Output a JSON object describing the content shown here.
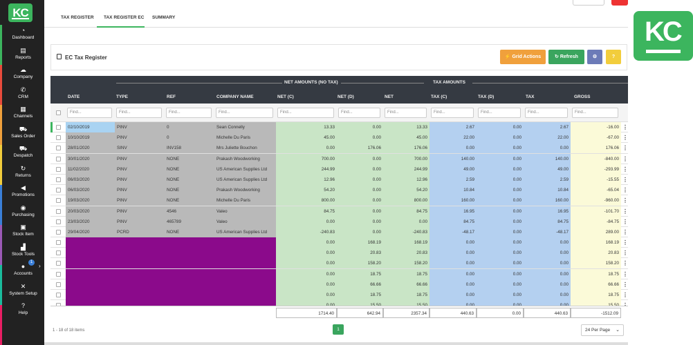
{
  "sidebar": {
    "logo": "KC",
    "items": [
      {
        "label": "Dashboard",
        "icon": "speedometer-icon",
        "glyph": "◔"
      },
      {
        "label": "Reports",
        "icon": "document-icon",
        "glyph": "▤"
      },
      {
        "label": "Company",
        "icon": "cloud-icon",
        "glyph": "☁"
      },
      {
        "label": "CRM",
        "icon": "phone-icon",
        "glyph": "✆"
      },
      {
        "label": "Channels",
        "icon": "channels-icon",
        "glyph": "▦"
      },
      {
        "label": "Sales Order",
        "icon": "cart-icon",
        "glyph": "⛟"
      },
      {
        "label": "Despatch",
        "icon": "truck-icon",
        "glyph": "⛟"
      },
      {
        "label": "Returns",
        "icon": "returns-icon",
        "glyph": "↻"
      },
      {
        "label": "Promotions",
        "icon": "megaphone-icon",
        "glyph": "◀"
      },
      {
        "label": "Purchasing",
        "icon": "coins-icon",
        "glyph": "◉"
      },
      {
        "label": "Stock Item",
        "icon": "box-icon",
        "glyph": "▣"
      },
      {
        "label": "Stock Tools",
        "icon": "chart-icon",
        "glyph": "▟"
      },
      {
        "label": "Accounts",
        "icon": "user-icon",
        "glyph": "●"
      },
      {
        "label": "System Setup",
        "icon": "tools-icon",
        "glyph": "✕"
      },
      {
        "label": "Help",
        "icon": "help-icon",
        "glyph": "?"
      }
    ],
    "accounts_badge": "1",
    "stripe_colors": [
      "#3cb55e",
      "#e94b3c",
      "#f0a03c",
      "#f2cd3c",
      "#3a7fd8",
      "#9b59b6",
      "#1abc9c",
      "#e91e63"
    ]
  },
  "tabs": [
    {
      "label": "TAX REGISTER",
      "active": false
    },
    {
      "label": "TAX REGISTER EC",
      "active": true
    },
    {
      "label": "SUMMARY",
      "active": false
    }
  ],
  "panel": {
    "title": "EC Tax Register",
    "grid_actions": "⚡ Grid Actions",
    "refresh": "↻ Refresh",
    "gear": "⚙",
    "help": "?"
  },
  "grid": {
    "group_net": "NET AMOUNTS (NO TAX)",
    "group_tax": "TAX AMOUNTS",
    "columns": [
      "DATE",
      "TYPE",
      "REF",
      "COMPANY NAME",
      "NET (C)",
      "NET (D)",
      "NET",
      "TAX (C)",
      "TAX (D)",
      "TAX",
      "GROSS"
    ],
    "filter_placeholder": "Find...",
    "rows": [
      {
        "date": "02/10/2019",
        "type": "PINV",
        "ref": "0",
        "company": "Sean Connelly",
        "netc": "13.33",
        "netd": "0.00",
        "net": "13.33",
        "taxc": "2.67",
        "taxd": "0.00",
        "tax": "2.67",
        "gross": "-16.00",
        "hl": "grey",
        "sel": true
      },
      {
        "date": "10/10/2019",
        "type": "PINV",
        "ref": "0",
        "company": "Michelle Du Paris",
        "netc": "45.00",
        "netd": "0.00",
        "net": "45.00",
        "taxc": "22.00",
        "taxd": "0.00",
        "tax": "22.00",
        "gross": "-67.00",
        "hl": "grey",
        "sel": false
      },
      {
        "date": "28/01/2020",
        "type": "SINV",
        "ref": "INV158",
        "company": "Mrs Juliette Bouchon",
        "netc": "0.00",
        "netd": "176.06",
        "net": "176.06",
        "taxc": "0.00",
        "taxd": "0.00",
        "tax": "0.00",
        "gross": "176.06",
        "hl": "grey",
        "sel": false
      },
      {
        "date": "30/01/2020",
        "type": "PINV",
        "ref": "NONE",
        "company": "Prakash Woodworking",
        "netc": "700.00",
        "netd": "0.00",
        "net": "700.00",
        "taxc": "140.00",
        "taxd": "0.00",
        "tax": "140.00",
        "gross": "-840.00",
        "hl": "grey",
        "sel": false
      },
      {
        "date": "11/02/2020",
        "type": "PINV",
        "ref": "NONE",
        "company": "US American Supplies Ltd",
        "netc": "244.99",
        "netd": "0.00",
        "net": "244.99",
        "taxc": "49.00",
        "taxd": "0.00",
        "tax": "49.00",
        "gross": "-293.99",
        "hl": "grey",
        "sel": false
      },
      {
        "date": "06/03/2020",
        "type": "PINV",
        "ref": "NONE",
        "company": "US American Supplies Ltd",
        "netc": "12.96",
        "netd": "0.00",
        "net": "12.96",
        "taxc": "2.59",
        "taxd": "0.00",
        "tax": "2.59",
        "gross": "-15.55",
        "hl": "grey",
        "sel": false
      },
      {
        "date": "06/03/2020",
        "type": "PINV",
        "ref": "NONE",
        "company": "Prakash Woodworking",
        "netc": "54.20",
        "netd": "0.00",
        "net": "54.20",
        "taxc": "10.84",
        "taxd": "0.00",
        "tax": "10.84",
        "gross": "-65.04",
        "hl": "grey",
        "sel": false
      },
      {
        "date": "19/03/2020",
        "type": "PINV",
        "ref": "NONE",
        "company": "Michelle Du Paris",
        "netc": "800.00",
        "netd": "0.00",
        "net": "800.00",
        "taxc": "160.00",
        "taxd": "0.00",
        "tax": "160.00",
        "gross": "-960.00",
        "hl": "grey",
        "sel": false
      },
      {
        "date": "20/03/2020",
        "type": "PINV",
        "ref": "4546",
        "company": "Valeo",
        "netc": "84.75",
        "netd": "0.00",
        "net": "84.75",
        "taxc": "16.95",
        "taxd": "0.00",
        "tax": "16.95",
        "gross": "-101.70",
        "hl": "grey",
        "sel": false
      },
      {
        "date": "23/03/2020",
        "type": "PINV",
        "ref": "465789",
        "company": "Valeo",
        "netc": "0.00",
        "netd": "0.00",
        "net": "0.00",
        "taxc": "84.75",
        "taxd": "0.00",
        "tax": "84.75",
        "gross": "-84.75",
        "hl": "grey",
        "sel": false
      },
      {
        "date": "29/04/2020",
        "type": "PCRD",
        "ref": "NONE",
        "company": "US American Supplies Ltd",
        "netc": "-240.83",
        "netd": "0.00",
        "net": "-240.83",
        "taxc": "-48.17",
        "taxd": "0.00",
        "tax": "-48.17",
        "gross": "289.00",
        "hl": "grey",
        "sel": false
      },
      {
        "date": "",
        "type": "",
        "ref": "",
        "company": "",
        "netc": "0.00",
        "netd": "168.19",
        "net": "168.19",
        "taxc": "0.00",
        "taxd": "0.00",
        "tax": "0.00",
        "gross": "168.19",
        "hl": "purple",
        "sel": false
      },
      {
        "date": "",
        "type": "",
        "ref": "",
        "company": "",
        "netc": "0.00",
        "netd": "20.83",
        "net": "20.83",
        "taxc": "0.00",
        "taxd": "0.00",
        "tax": "0.00",
        "gross": "20.83",
        "hl": "purple",
        "sel": false
      },
      {
        "date": "",
        "type": "",
        "ref": "",
        "company": "",
        "netc": "0.00",
        "netd": "158.20",
        "net": "158.20",
        "taxc": "0.00",
        "taxd": "0.00",
        "tax": "0.00",
        "gross": "158.20",
        "hl": "purple",
        "sel": false
      },
      {
        "date": "",
        "type": "",
        "ref": "",
        "company": "",
        "netc": "0.00",
        "netd": "18.75",
        "net": "18.75",
        "taxc": "0.00",
        "taxd": "0.00",
        "tax": "0.00",
        "gross": "18.75",
        "hl": "purple",
        "sel": false
      },
      {
        "date": "",
        "type": "",
        "ref": "",
        "company": "",
        "netc": "0.00",
        "netd": "66.66",
        "net": "66.66",
        "taxc": "0.00",
        "taxd": "0.00",
        "tax": "0.00",
        "gross": "66.66",
        "hl": "purple",
        "sel": false
      },
      {
        "date": "",
        "type": "",
        "ref": "",
        "company": "",
        "netc": "0.00",
        "netd": "18.75",
        "net": "18.75",
        "taxc": "0.00",
        "taxd": "0.00",
        "tax": "0.00",
        "gross": "18.75",
        "hl": "purple",
        "sel": false
      },
      {
        "date": "",
        "type": "",
        "ref": "",
        "company": "",
        "netc": "0.00",
        "netd": "15.50",
        "net": "15.50",
        "taxc": "0.00",
        "taxd": "0.00",
        "tax": "0.00",
        "gross": "15.50",
        "hl": "purple",
        "sel": false
      }
    ],
    "totals": {
      "netc": "1714.40",
      "netd": "642.94",
      "net": "2357.34",
      "taxc": "440.63",
      "taxd": "0.00",
      "tax": "440.63",
      "gross": "-1512.09"
    },
    "colors": {
      "grey": "#b9b9b9",
      "purple": "#8b0a8b",
      "net": "#c9e5c6",
      "tax": "#b4d0f0",
      "gross": "#fbfad8",
      "selected_date": "#a9d3f2"
    }
  },
  "footer": {
    "items_count": "1 - 18 of 18 items",
    "page": "1",
    "per_page": "24 Per Page"
  },
  "brand_badge": "KC"
}
